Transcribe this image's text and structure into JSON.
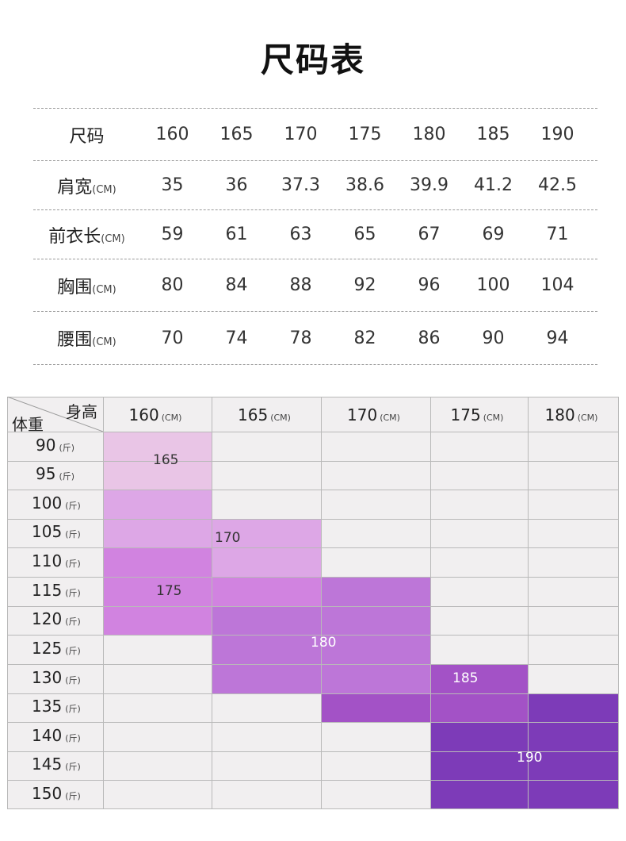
{
  "title": "尺码表",
  "size_table": {
    "sizes": [
      "160",
      "165",
      "170",
      "175",
      "180",
      "185",
      "190"
    ],
    "header_label": "尺码",
    "rows": [
      {
        "label": "肩宽",
        "unit": "(CM)",
        "values": [
          "35",
          "36",
          "37.3",
          "38.6",
          "39.9",
          "41.2",
          "42.5"
        ]
      },
      {
        "label": "前衣长",
        "unit": "(CM)",
        "values": [
          "59",
          "61",
          "63",
          "65",
          "67",
          "69",
          "71"
        ]
      },
      {
        "label": "胸围",
        "unit": "(CM)",
        "values": [
          "80",
          "84",
          "88",
          "92",
          "96",
          "100",
          "104"
        ]
      },
      {
        "label": "腰围",
        "unit": "(CM)",
        "values": [
          "70",
          "74",
          "78",
          "82",
          "86",
          "90",
          "94"
        ]
      }
    ]
  },
  "size_chart": {
    "corner_top": "身高",
    "corner_bottom": "体重",
    "height_unit": "(CM)",
    "weight_unit": "(斤)",
    "heights": [
      "160",
      "165",
      "170",
      "175",
      "180"
    ],
    "weights": [
      "90",
      "95",
      "100",
      "105",
      "110",
      "115",
      "120",
      "125",
      "130",
      "135",
      "140",
      "145",
      "150"
    ],
    "regions": [
      {
        "label": "165",
        "color": "#e9c5e6"
      },
      {
        "label": "170",
        "color": "#dda7e6"
      },
      {
        "label": "175",
        "color": "#d183e0"
      },
      {
        "label": "180",
        "color": "#bd76d8"
      },
      {
        "label": "185",
        "color": "#a352c6"
      },
      {
        "label": "190",
        "color": "#7d3bb8"
      }
    ]
  }
}
